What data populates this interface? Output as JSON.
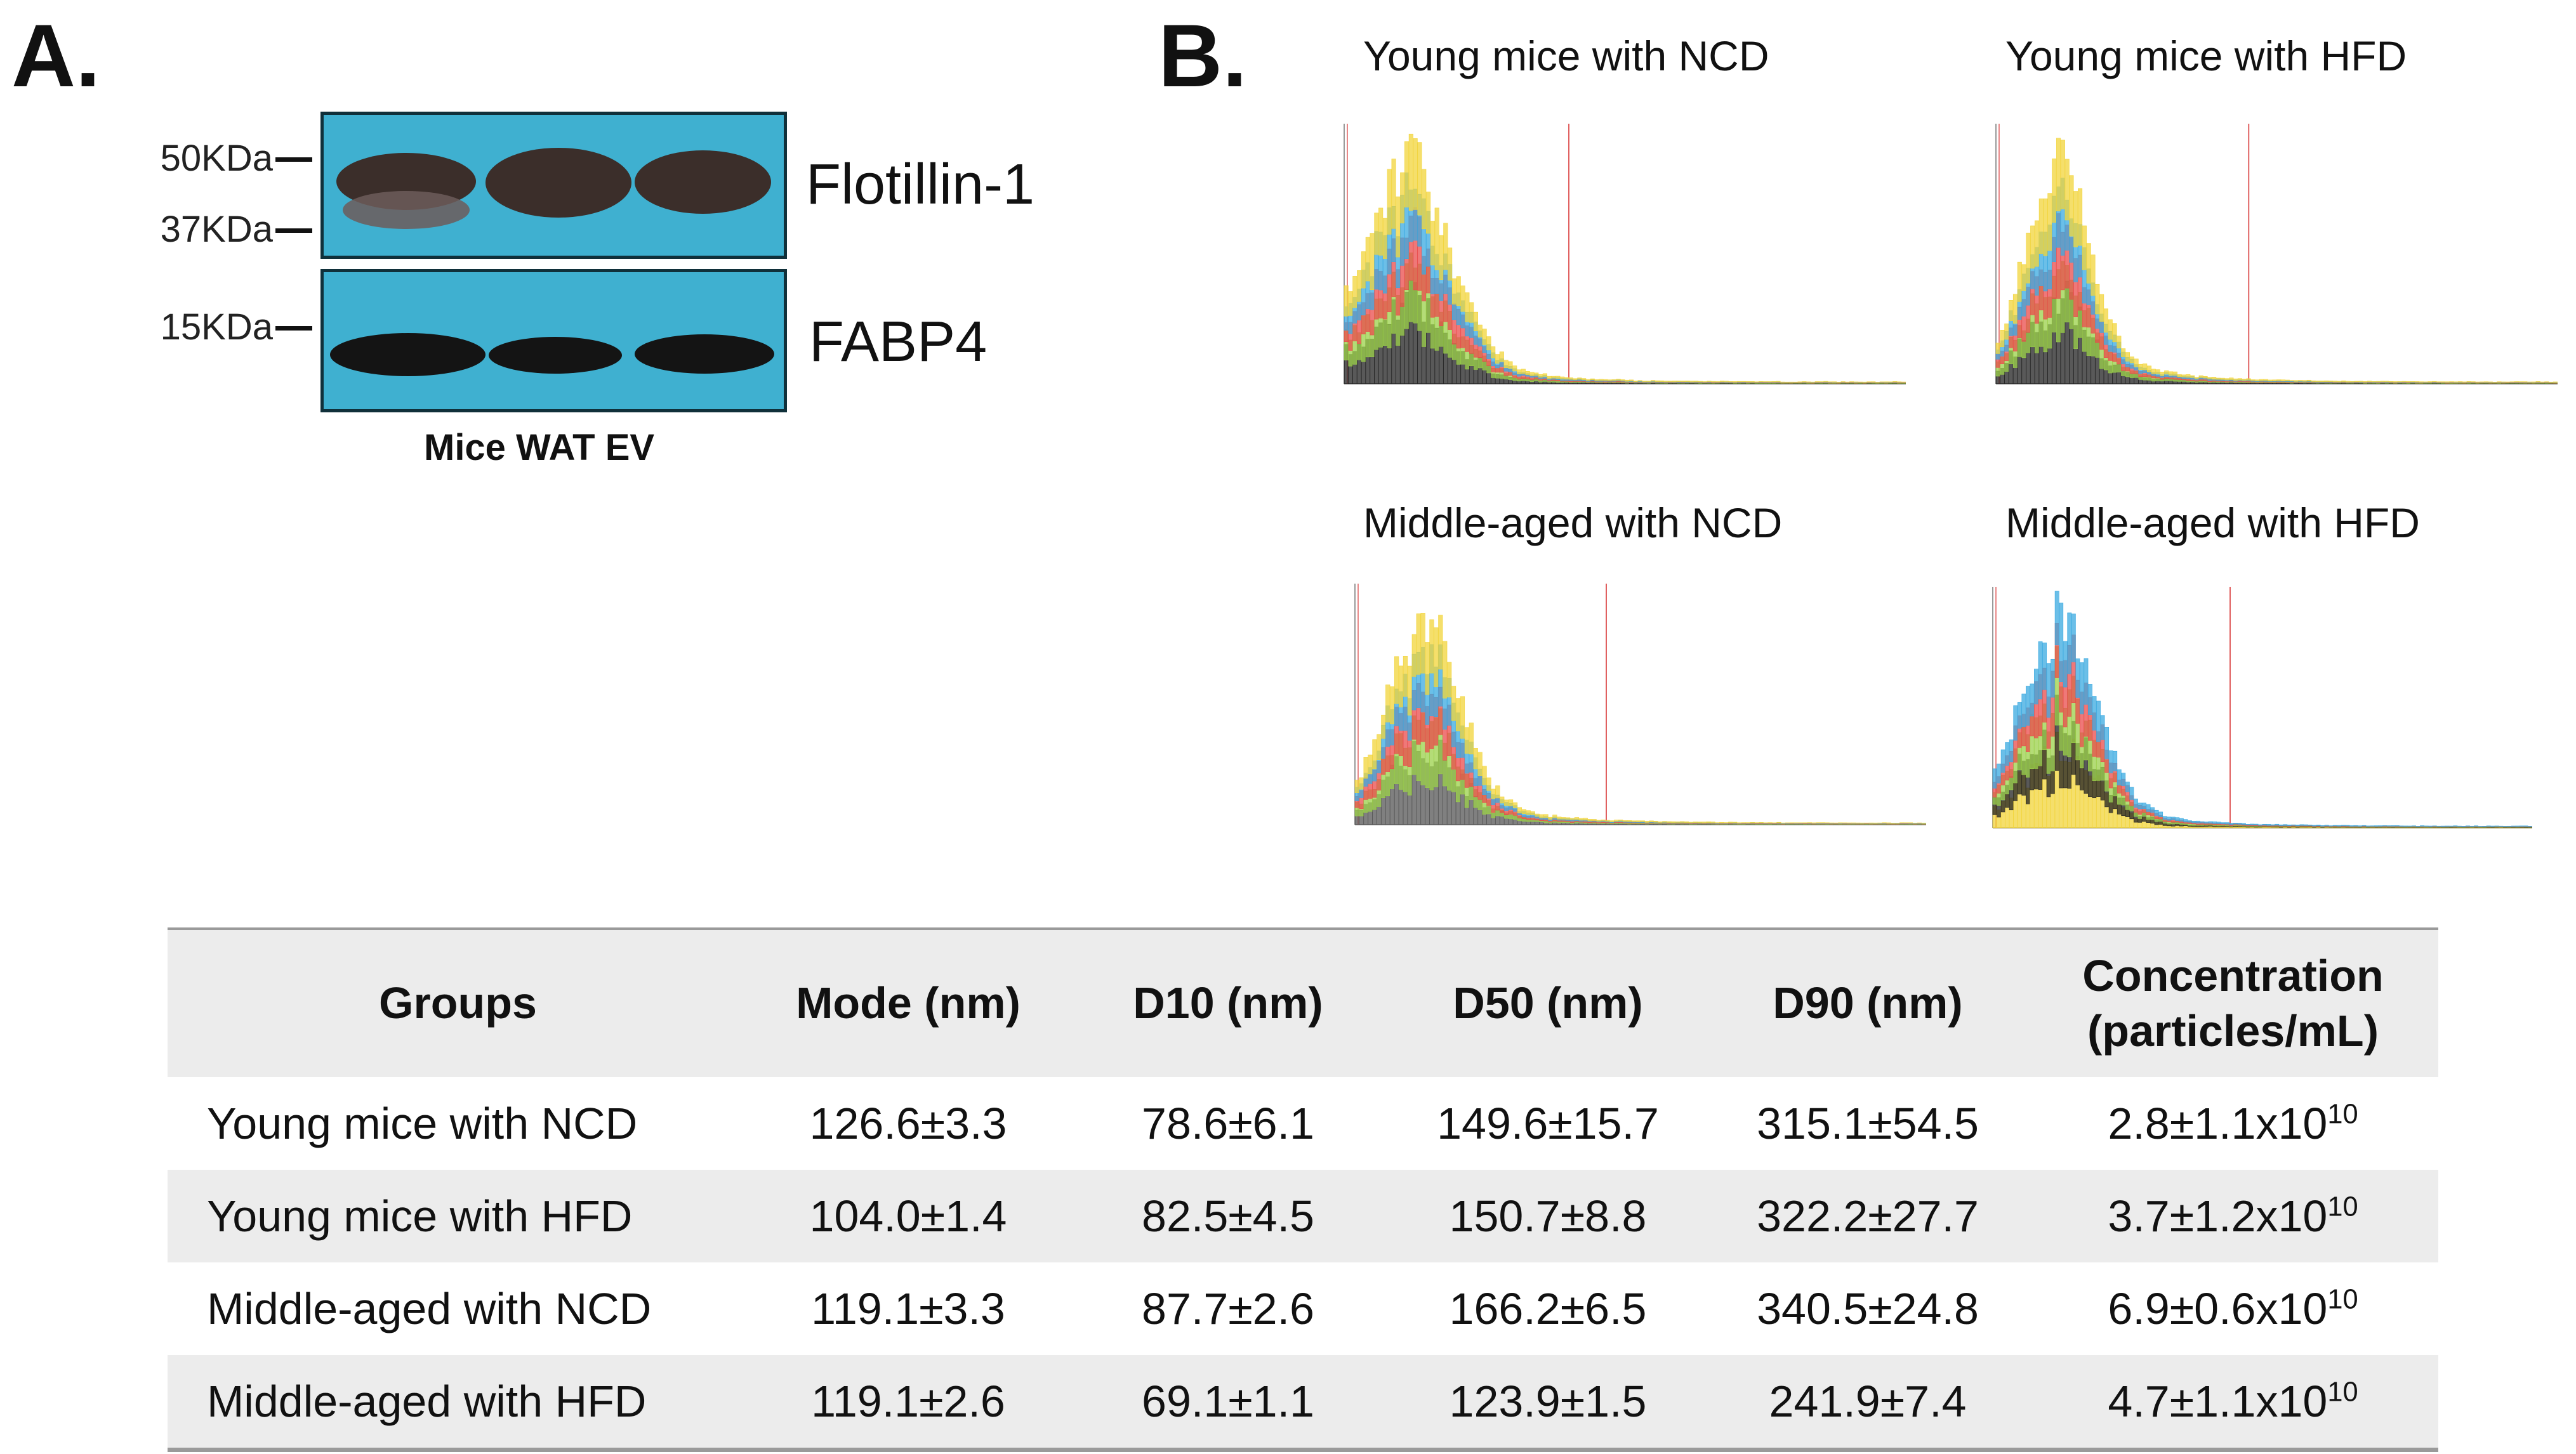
{
  "panel_a": {
    "letter": "A.",
    "markers": [
      "50KDa",
      "37KDa",
      "15KDa"
    ],
    "proteins": [
      "Flotillin-1",
      "FABP4"
    ],
    "caption": "Mice WAT EV"
  },
  "panel_b": {
    "letter": "B.",
    "plots": [
      {
        "title": "Young mice with NCD",
        "colors": [
          "#222222",
          "#9bd04a",
          "#e94b4b",
          "#3aa9e0",
          "#f2d43a"
        ]
      },
      {
        "title": "Young mice with HFD",
        "colors": [
          "#222222",
          "#9bd04a",
          "#e94b4b",
          "#3aa9e0",
          "#f2d43a"
        ]
      },
      {
        "title": "Middle-aged with NCD",
        "colors": [
          "#555555",
          "#9bd04a",
          "#e94b4b",
          "#3aa9e0",
          "#f2d43a"
        ]
      },
      {
        "title": "Middle-aged with HFD",
        "colors": [
          "#f2d43a",
          "#222222",
          "#9bd04a",
          "#e94b4b",
          "#3aa9e0"
        ]
      }
    ]
  },
  "table": {
    "headers": [
      "Groups",
      "Mode (nm)",
      "D10 (nm)",
      "D50 (nm)",
      "D90 (nm)",
      "Concentration",
      "(particles/mL)"
    ],
    "rows": [
      {
        "group": "Young mice with NCD",
        "mode": "126.6±3.3",
        "d10": "78.6±6.1",
        "d50": "149.6±15.7",
        "d90": "315.1±54.5",
        "conc": "2.8±1.1x10",
        "exp": "10"
      },
      {
        "group": "Young mice with HFD",
        "mode": "104.0±1.4",
        "d10": "82.5±4.5",
        "d50": "150.7±8.8",
        "d90": "322.2±27.7",
        "conc": "3.7±1.2x10",
        "exp": "10"
      },
      {
        "group": "Middle-aged with NCD",
        "mode": "119.1±3.3",
        "d10": "87.7±2.6",
        "d50": "166.2±6.5",
        "d90": "340.5±24.8",
        "conc": "6.9±0.6x10",
        "exp": "10"
      },
      {
        "group": "Middle-aged with HFD",
        "mode": "119.1±2.6",
        "d10": "69.1±1.1",
        "d50": "123.9±1.5",
        "d90": "241.9±7.4",
        "conc": "4.7±1.1x10",
        "exp": "10"
      }
    ]
  }
}
